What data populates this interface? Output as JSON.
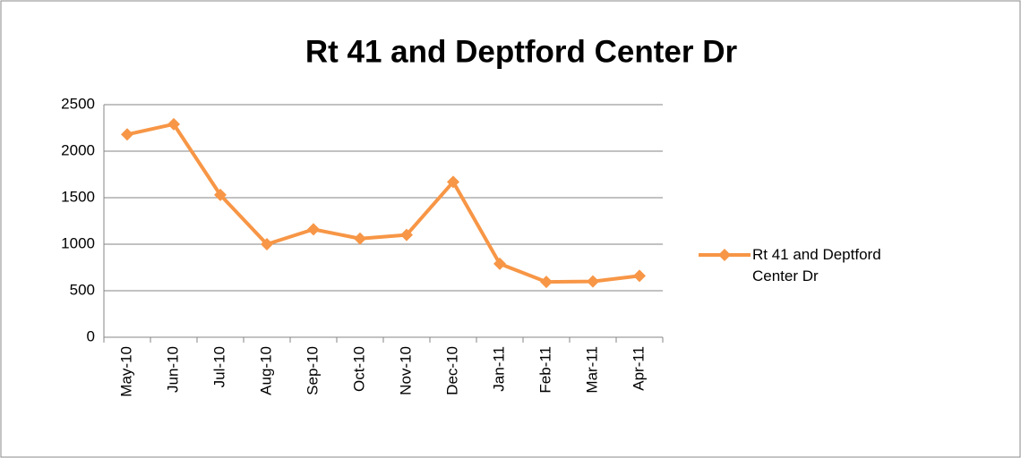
{
  "chart_data": {
    "type": "line",
    "title": "Rt 41 and Deptford Center Dr",
    "categories": [
      "May-10",
      "Jun-10",
      "Jul-10",
      "Aug-10",
      "Sep-10",
      "Oct-10",
      "Nov-10",
      "Dec-10",
      "Jan-11",
      "Feb-11",
      "Mar-11",
      "Apr-11"
    ],
    "series": [
      {
        "name": "Rt 41 and Deptford Center Dr",
        "color": "#f79646",
        "values": [
          2180,
          2290,
          1530,
          1000,
          1160,
          1060,
          1100,
          1670,
          790,
          595,
          600,
          660
        ]
      }
    ],
    "ylim": [
      0,
      2500
    ],
    "yticks": [
      0,
      500,
      1000,
      1500,
      2000,
      2500
    ],
    "grid": true,
    "legend": "right"
  }
}
